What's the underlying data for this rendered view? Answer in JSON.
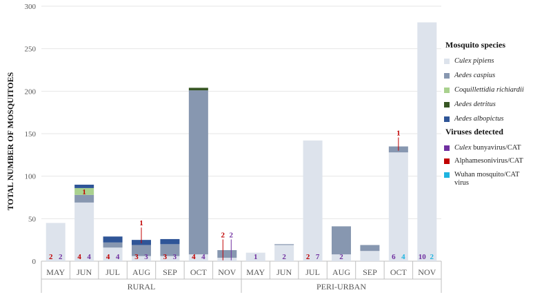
{
  "chart_data": {
    "type": "bar",
    "stacked": true,
    "ylabel": "TOTAL NUMBER OF MOSQUITOES",
    "ylim": [
      0,
      300
    ],
    "yticks": [
      0,
      50,
      100,
      150,
      200,
      250,
      300
    ],
    "grid": true,
    "groups": [
      {
        "label": "RURAL",
        "months": [
          "MAY",
          "JUN",
          "JUL",
          "AUG",
          "SEP",
          "OCT",
          "NOV"
        ]
      },
      {
        "label": "PERI-URBAN",
        "months": [
          "MAY",
          "JUN",
          "JUL",
          "AUG",
          "SEP",
          "OCT",
          "NOV"
        ]
      }
    ],
    "species_legend_title": "Mosquito species",
    "series": [
      {
        "name": "Culex pipiens",
        "color": "#dde3ec",
        "values": [
          45,
          69,
          16,
          6,
          6,
          8,
          4,
          10,
          19,
          142,
          8,
          12,
          128,
          281
        ]
      },
      {
        "name": "Aedes caspius",
        "color": "#8797b0",
        "values": [
          0,
          9,
          6,
          13,
          14,
          193,
          9,
          0,
          1,
          0,
          33,
          7,
          7,
          0
        ]
      },
      {
        "name": "Coquillettidia richiardii",
        "color": "#a9d18e",
        "values": [
          0,
          8,
          0,
          0,
          0,
          0,
          0,
          0,
          0,
          0,
          0,
          0,
          0,
          0
        ]
      },
      {
        "name": "Aedes detritus",
        "color": "#375623",
        "values": [
          0,
          0,
          0,
          0,
          0,
          3,
          0,
          0,
          0,
          0,
          0,
          0,
          0,
          0
        ]
      },
      {
        "name": "Aedes albopictus",
        "color": "#2f5597",
        "values": [
          0,
          4,
          7,
          6,
          6,
          0,
          0,
          0,
          0,
          0,
          0,
          0,
          0,
          0
        ]
      }
    ],
    "virus_legend_title": "Viruses detected",
    "viruses": [
      {
        "name": "Culex bunyavirus/CAT",
        "name_italic": "Culex",
        "name_rest": " bunyavirus/CAT",
        "color": "#7030a0"
      },
      {
        "name": "Alphamesonivirus/CAT",
        "color": "#c00000"
      },
      {
        "name": "Wuhan mosquito/CAT virus",
        "name_line1": "Wuhan mosquito/CAT",
        "name_line2": "virus",
        "color": "#1fb4e0"
      }
    ],
    "bar_labels": [
      {
        "bar": 0,
        "text": "2",
        "virus": 1
      },
      {
        "bar": 0,
        "text": "2",
        "virus": 0
      },
      {
        "bar": 1,
        "text": "4",
        "virus": 1
      },
      {
        "bar": 1,
        "text": "4",
        "virus": 0
      },
      {
        "bar": 2,
        "text": "4",
        "virus": 1
      },
      {
        "bar": 2,
        "text": "4",
        "virus": 0
      },
      {
        "bar": 3,
        "text": "3",
        "virus": 1
      },
      {
        "bar": 3,
        "text": "3",
        "virus": 0
      },
      {
        "bar": 4,
        "text": "3",
        "virus": 1
      },
      {
        "bar": 4,
        "text": "3",
        "virus": 0
      },
      {
        "bar": 5,
        "text": "4",
        "virus": 1
      },
      {
        "bar": 5,
        "text": "4",
        "virus": 0
      },
      {
        "bar": 7,
        "text": "1",
        "virus": 0
      },
      {
        "bar": 8,
        "text": "2",
        "virus": 0
      },
      {
        "bar": 9,
        "text": "2",
        "virus": 1
      },
      {
        "bar": 9,
        "text": "7",
        "virus": 0
      },
      {
        "bar": 10,
        "text": "2",
        "virus": 0
      },
      {
        "bar": 12,
        "text": "6",
        "virus": 0
      },
      {
        "bar": 12,
        "text": "4",
        "virus": 2
      },
      {
        "bar": 13,
        "text": "10",
        "virus": 0
      },
      {
        "bar": 13,
        "text": "2",
        "virus": 2
      }
    ],
    "callouts": [
      {
        "bar": 1,
        "text": "1",
        "virus": 1,
        "at": 82,
        "inside": true
      },
      {
        "bar": 3,
        "text": "1",
        "virus": 1,
        "at": 21,
        "label_at": 42
      },
      {
        "bar": 6,
        "text": "2",
        "virus": 1,
        "at": 1,
        "label_at": 28
      },
      {
        "bar": 6,
        "text": "2",
        "virus": 0,
        "at": 1,
        "label_at": 28
      },
      {
        "bar": 12,
        "text": "1",
        "virus": 1,
        "at": 130,
        "label_at": 148
      }
    ]
  }
}
